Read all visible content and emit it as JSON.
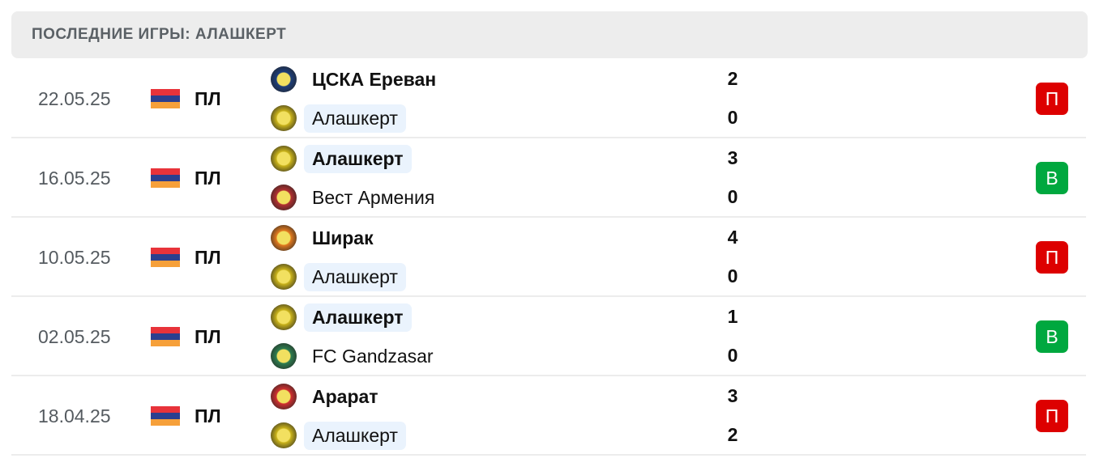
{
  "header": {
    "title": "ПОСЛЕДНИЕ ИГРЫ: АЛАШКЕРТ"
  },
  "colors": {
    "loss": "#dd0000",
    "win": "#00a83f",
    "highlight": "#eaf3fd"
  },
  "matches": [
    {
      "date": "22.05.25",
      "competition": "ПЛ",
      "flag": "armenia-flag",
      "home": {
        "name": "ЦСКА Ереван",
        "score": "2",
        "bold": true,
        "hl": false,
        "logo": "#1d3e7a"
      },
      "away": {
        "name": "Алашкерт",
        "score": "0",
        "bold": false,
        "hl": true,
        "logo": "#c9b21a"
      },
      "result": "П",
      "result_type": "loss"
    },
    {
      "date": "16.05.25",
      "competition": "ПЛ",
      "flag": "armenia-flag",
      "home": {
        "name": "Алашкерт",
        "score": "3",
        "bold": true,
        "hl": true,
        "logo": "#c9b21a"
      },
      "away": {
        "name": "Вест Армения",
        "score": "0",
        "bold": false,
        "hl": false,
        "logo": "#b23030"
      },
      "result": "В",
      "result_type": "win"
    },
    {
      "date": "10.05.25",
      "competition": "ПЛ",
      "flag": "armenia-flag",
      "home": {
        "name": "Ширак",
        "score": "4",
        "bold": true,
        "hl": false,
        "logo": "#e27a1e"
      },
      "away": {
        "name": "Алашкерт",
        "score": "0",
        "bold": false,
        "hl": true,
        "logo": "#c9b21a"
      },
      "result": "П",
      "result_type": "loss"
    },
    {
      "date": "02.05.25",
      "competition": "ПЛ",
      "flag": "armenia-flag",
      "home": {
        "name": "Алашкерт",
        "score": "1",
        "bold": true,
        "hl": true,
        "logo": "#c9b21a"
      },
      "away": {
        "name": "FC Gandzasar",
        "score": "0",
        "bold": false,
        "hl": false,
        "logo": "#2e7d4f"
      },
      "result": "В",
      "result_type": "win"
    },
    {
      "date": "18.04.25",
      "competition": "ПЛ",
      "flag": "armenia-flag",
      "home": {
        "name": "Арарат",
        "score": "3",
        "bold": true,
        "hl": false,
        "logo": "#d03030"
      },
      "away": {
        "name": "Алашкерт",
        "score": "2",
        "bold": false,
        "hl": true,
        "logo": "#c9b21a"
      },
      "result": "П",
      "result_type": "loss"
    }
  ]
}
